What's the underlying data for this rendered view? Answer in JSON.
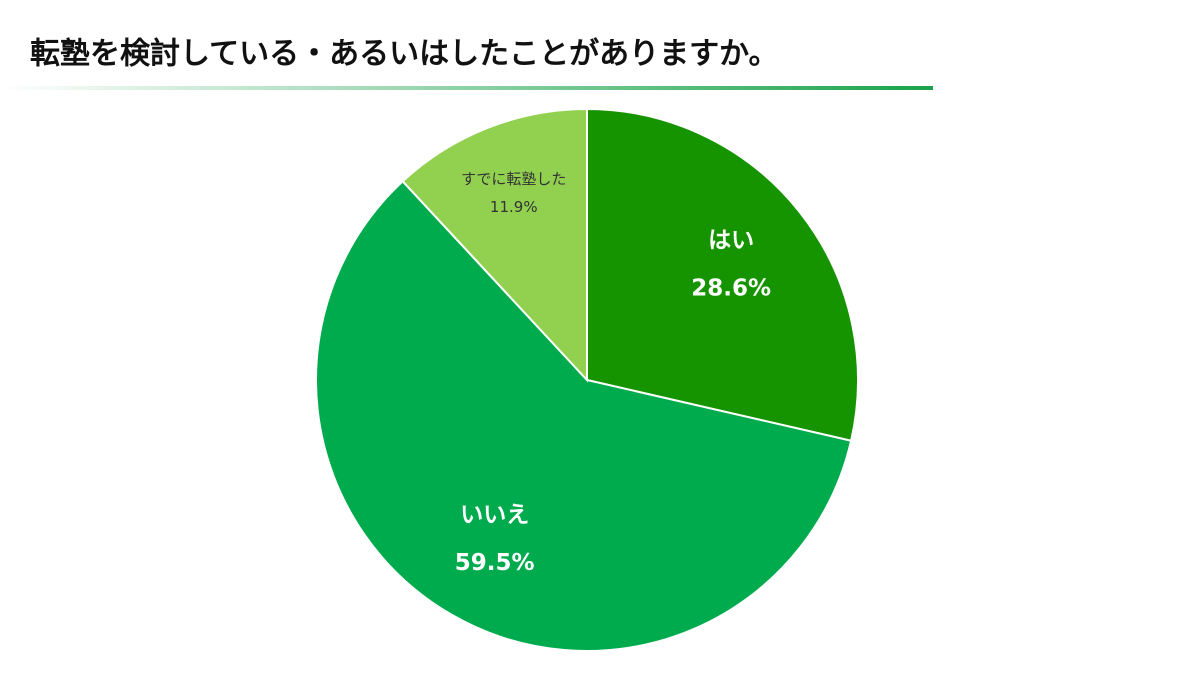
{
  "chart_data": {
    "type": "pie",
    "title": "転塾を検討している・あるいはしたことがありますか。",
    "categories": [
      "はい",
      "いいえ",
      "すでに転塾した"
    ],
    "values": [
      28.6,
      59.5,
      11.9
    ],
    "value_labels": [
      "28.6%",
      "59.5%",
      "11.9%"
    ],
    "colors": [
      "#159400",
      "#00ab4e",
      "#92d050"
    ]
  }
}
